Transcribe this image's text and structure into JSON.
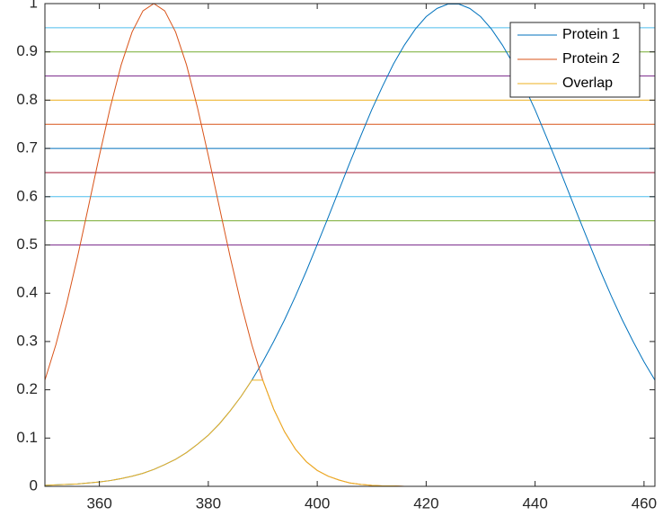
{
  "chart_data": {
    "type": "line",
    "x": [
      350,
      352,
      354,
      356,
      358,
      360,
      362,
      364,
      366,
      368,
      370,
      372,
      374,
      376,
      378,
      380,
      382,
      384,
      386,
      388,
      390,
      392,
      394,
      396,
      398,
      400,
      402,
      404,
      406,
      408,
      410,
      412,
      414,
      416,
      418,
      420,
      422,
      424,
      426,
      428,
      430,
      432,
      434,
      436,
      438,
      440,
      442,
      444,
      446,
      448,
      450,
      452,
      454,
      456,
      458,
      460,
      462
    ],
    "series": [
      {
        "name": "Protein 1",
        "color": "#0072BD",
        "values": [
          0.002,
          0.003,
          0.004,
          0.005,
          0.007,
          0.009,
          0.012,
          0.016,
          0.021,
          0.027,
          0.035,
          0.045,
          0.056,
          0.07,
          0.087,
          0.106,
          0.129,
          0.156,
          0.186,
          0.22,
          0.258,
          0.3,
          0.345,
          0.394,
          0.446,
          0.501,
          0.557,
          0.614,
          0.671,
          0.726,
          0.78,
          0.829,
          0.875,
          0.914,
          0.947,
          0.973,
          0.99,
          0.999,
          0.999,
          0.99,
          0.973,
          0.947,
          0.914,
          0.875,
          0.829,
          0.78,
          0.726,
          0.671,
          0.614,
          0.557,
          0.501,
          0.446,
          0.394,
          0.345,
          0.3,
          0.258,
          0.22
        ]
      },
      {
        "name": "Protein 2",
        "color": "#D95319",
        "values": [
          0.22,
          0.293,
          0.379,
          0.476,
          0.58,
          0.685,
          0.785,
          0.873,
          0.941,
          0.985,
          1,
          0.985,
          0.941,
          0.873,
          0.785,
          0.685,
          0.58,
          0.476,
          0.379,
          0.293,
          0.22,
          0.16,
          0.113,
          0.077,
          0.051,
          0.033,
          0.021,
          0.013,
          0.007,
          0.004,
          0.002,
          0.001,
          0.001,
          0,
          0,
          0,
          0,
          0,
          0,
          0,
          0,
          0,
          0,
          0,
          0,
          0,
          0,
          0,
          0,
          0,
          0,
          0,
          0,
          0,
          0,
          0,
          0
        ]
      },
      {
        "name": "Overlap",
        "color": "#EDB120",
        "values": [
          0.002,
          0.003,
          0.004,
          0.005,
          0.007,
          0.009,
          0.012,
          0.016,
          0.021,
          0.027,
          0.035,
          0.045,
          0.056,
          0.07,
          0.087,
          0.106,
          0.129,
          0.156,
          0.186,
          0.22,
          0.22,
          0.16,
          0.113,
          0.077,
          0.051,
          0.033,
          0.021,
          0.013,
          0.007,
          0.004,
          0.002,
          0.001,
          0.001,
          0,
          0,
          0,
          0,
          0,
          0,
          0,
          0,
          0,
          0,
          0,
          0,
          0,
          0,
          0,
          0,
          0,
          0,
          0,
          0,
          0,
          0,
          0,
          0
        ]
      }
    ],
    "hlines": [
      {
        "value": 0.5,
        "color": "#7E2F8E"
      },
      {
        "value": 0.55,
        "color": "#77AC30"
      },
      {
        "value": 0.6,
        "color": "#4DBEEE"
      },
      {
        "value": 0.65,
        "color": "#A2142F"
      },
      {
        "value": 0.7,
        "color": "#0072BD"
      },
      {
        "value": 0.75,
        "color": "#D95319"
      },
      {
        "value": 0.8,
        "color": "#EDB120"
      },
      {
        "value": 0.85,
        "color": "#7E2F8E"
      },
      {
        "value": 0.9,
        "color": "#77AC30"
      },
      {
        "value": 0.95,
        "color": "#4DBEEE"
      }
    ],
    "xlim": [
      350,
      462
    ],
    "ylim": [
      0,
      1
    ],
    "xticks": [
      360,
      380,
      400,
      420,
      440,
      460
    ],
    "yticks": [
      0,
      0.1,
      0.2,
      0.3,
      0.4,
      0.5,
      0.6,
      0.7,
      0.8,
      0.9,
      1
    ],
    "legend": "top-right"
  }
}
